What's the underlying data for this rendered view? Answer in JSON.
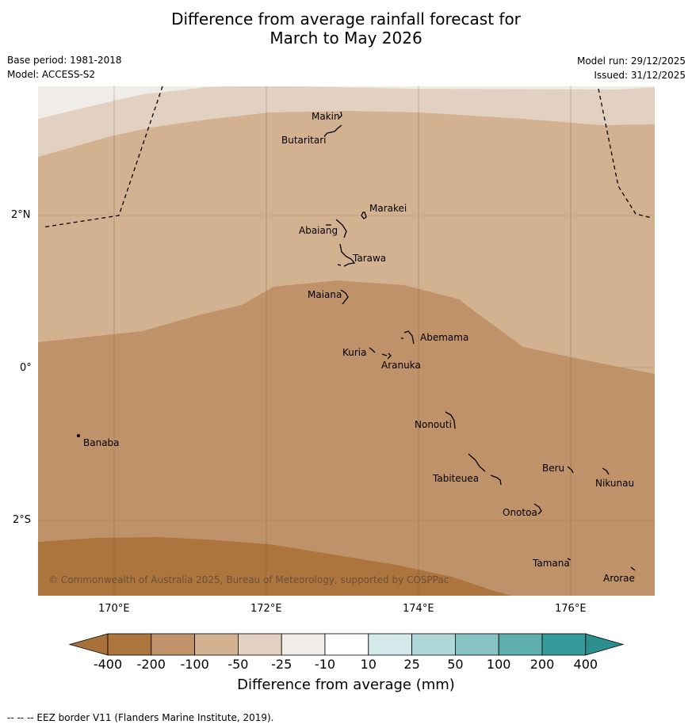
{
  "title_line1": "Difference from average rainfall forecast for",
  "title_line2": "March to May 2026",
  "base_period": "Base period: 1981-2018",
  "model": "Model: ACCESS-S2",
  "model_run": "Model run: 29/12/2025",
  "issued": "Issued: 31/12/2025",
  "copyright": "© Commonwealth of Australia 2025, Bureau of Meteorology, supported by COSPPac",
  "footnote": "--  --  -- EEZ border V11 (Flanders Marine Institute, 2019).",
  "axes": {
    "lon_ticks": [
      "170°E",
      "172°E",
      "174°E",
      "176°E"
    ],
    "lat_ticks": [
      "2°N",
      "0°",
      "2°S"
    ]
  },
  "islands": [
    "Makin",
    "Butaritari",
    "Marakei",
    "Abaiang",
    "Tarawa",
    "Maiana",
    "Abemama",
    "Kuria",
    "Aranuka",
    "Nonouti",
    "Banaba",
    "Tabiteuea",
    "Beru",
    "Nikunau",
    "Onotoa",
    "Tamana",
    "Arorae"
  ],
  "colorbar": {
    "title": "Difference from average (mm)",
    "labels": [
      "-400",
      "-200",
      "-100",
      "-50",
      "-25",
      "-10",
      "10",
      "25",
      "50",
      "100",
      "200",
      "400"
    ],
    "colors": [
      "#a8713a",
      "#ac753e",
      "#c09269",
      "#d2b291",
      "#e2d1c1",
      "#f0ece8",
      "#ffffff",
      "#d4e9e9",
      "#b0d8d8",
      "#86c3c2",
      "#5daeac",
      "#359b9a",
      "#2b8f8e"
    ]
  }
}
